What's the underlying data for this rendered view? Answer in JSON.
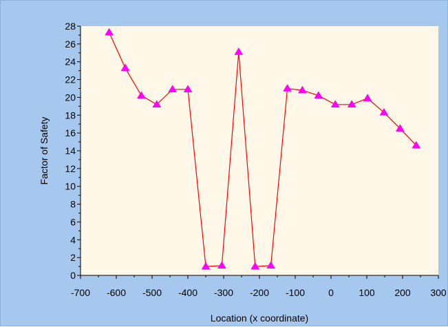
{
  "colors": {
    "background": "#a6c8ee",
    "plot_area": "#fff8e8",
    "line": "#ff0000",
    "marker": "#ff00ff",
    "axis": "#000000"
  },
  "chart_data": {
    "type": "line",
    "title": "",
    "xlabel": "Location (x coordinate)",
    "ylabel": "Factor of Safety",
    "xlim": [
      -700,
      300
    ],
    "ylim": [
      0,
      28
    ],
    "x_ticks": [
      -700,
      -600,
      -500,
      -400,
      -300,
      -200,
      -100,
      0,
      100,
      200,
      300
    ],
    "y_ticks": [
      0,
      2,
      4,
      6,
      8,
      10,
      12,
      14,
      16,
      18,
      20,
      22,
      24,
      26,
      28
    ],
    "grid": false,
    "legend": "none",
    "marker": "triangle",
    "series": [
      {
        "x": [
          -620,
          -575,
          -530,
          -487,
          -443,
          -400,
          -350,
          -305,
          -258,
          -212,
          -168,
          -122,
          -80,
          -35,
          12,
          58,
          102,
          148,
          193,
          238
        ],
        "values": [
          27.3,
          23.3,
          20.2,
          19.2,
          20.9,
          20.9,
          1.0,
          1.1,
          25.1,
          1.0,
          1.1,
          21.0,
          20.8,
          20.2,
          19.2,
          19.2,
          19.9,
          18.3,
          16.5,
          14.6
        ]
      }
    ]
  }
}
